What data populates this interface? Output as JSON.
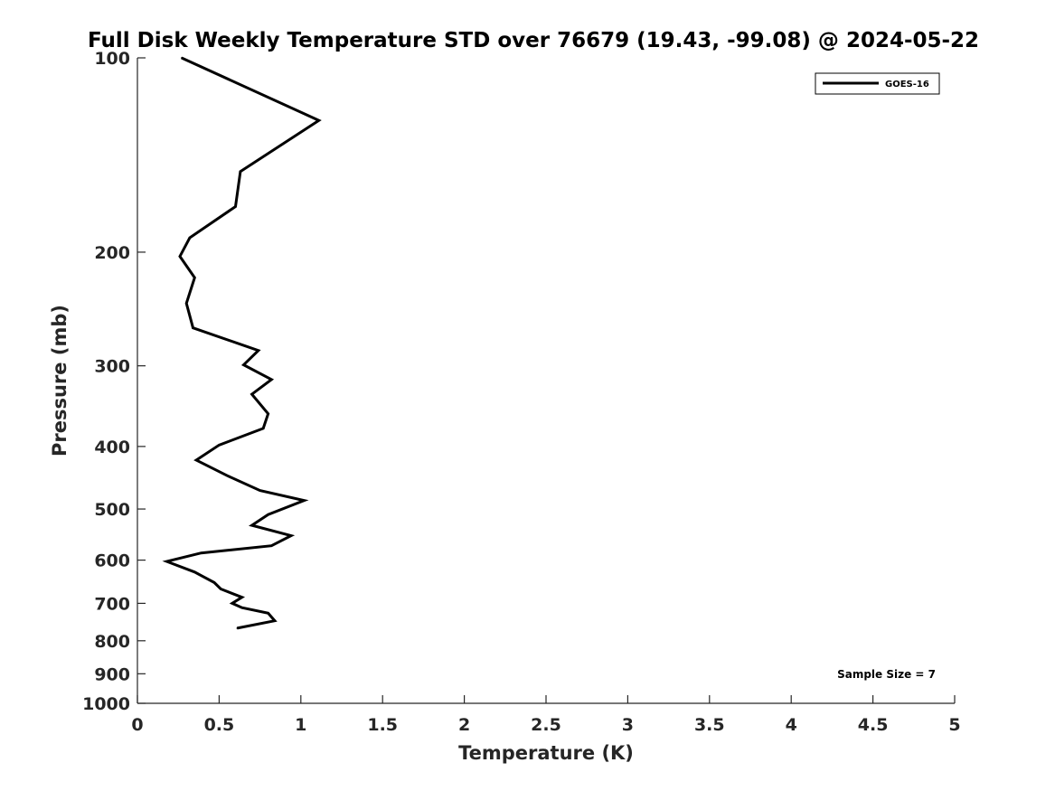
{
  "chart_data": {
    "type": "line",
    "title": "Full Disk Weekly Temperature STD over 76679 (19.43, -99.08) @ 2024-05-22",
    "xlabel": "Temperature (K)",
    "ylabel": "Pressure (mb)",
    "xlim": [
      0,
      5
    ],
    "ylim": [
      1000,
      100
    ],
    "y_scale": "log",
    "y_reversed": true,
    "xticks": [
      0,
      0.5,
      1,
      1.5,
      2,
      2.5,
      3,
      3.5,
      4,
      4.5,
      5
    ],
    "xtick_labels": [
      "0",
      "0.5",
      "1",
      "1.5",
      "2",
      "2.5",
      "3",
      "3.5",
      "4",
      "4.5",
      "5"
    ],
    "yticks": [
      100,
      200,
      300,
      400,
      500,
      600,
      700,
      800,
      900,
      1000
    ],
    "ytick_labels": [
      "100",
      "200",
      "300",
      "400",
      "500",
      "600",
      "700",
      "800",
      "900",
      "1000"
    ],
    "grid": false,
    "legend_position": "top-right",
    "series": [
      {
        "name": "GOES-16",
        "color": "#000000",
        "points": [
          [
            0.27,
            100
          ],
          [
            1.11,
            125
          ],
          [
            0.63,
            150
          ],
          [
            0.6,
            170
          ],
          [
            0.32,
            190
          ],
          [
            0.26,
            203
          ],
          [
            0.35,
            219
          ],
          [
            0.3,
            240
          ],
          [
            0.34,
            262
          ],
          [
            0.74,
            284
          ],
          [
            0.65,
            299
          ],
          [
            0.82,
            315
          ],
          [
            0.7,
            332
          ],
          [
            0.8,
            356
          ],
          [
            0.77,
            375
          ],
          [
            0.5,
            398
          ],
          [
            0.36,
            420
          ],
          [
            0.55,
            444
          ],
          [
            0.75,
            468
          ],
          [
            1.02,
            485
          ],
          [
            0.8,
            510
          ],
          [
            0.7,
            530
          ],
          [
            0.94,
            550
          ],
          [
            0.82,
            570
          ],
          [
            0.39,
            585
          ],
          [
            0.18,
            603
          ],
          [
            0.35,
            626
          ],
          [
            0.47,
            650
          ],
          [
            0.51,
            665
          ],
          [
            0.64,
            685
          ],
          [
            0.58,
            700
          ],
          [
            0.64,
            711
          ],
          [
            0.8,
            725
          ],
          [
            0.84,
            745
          ],
          [
            0.61,
            765
          ]
        ]
      }
    ],
    "annotations": [
      "Sample Size = 7"
    ]
  }
}
